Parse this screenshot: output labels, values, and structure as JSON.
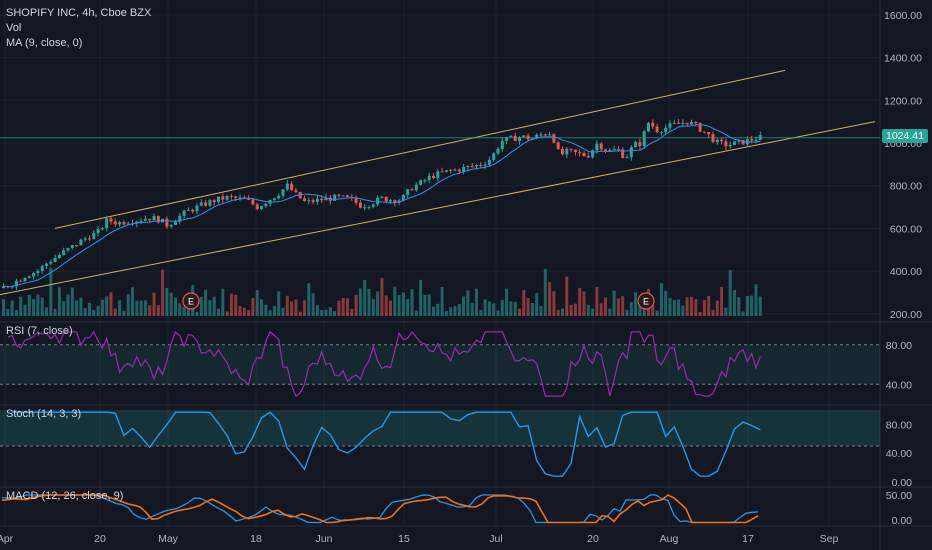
{
  "header": {
    "symbol_line": "SHOPIFY INC, 4h, Cboe BZX",
    "vol_label": "Vol",
    "ma_label": "MA (9, close, 0)"
  },
  "price_badge": "1024.41",
  "colors": {
    "background": "#131722",
    "up": "#26a69a",
    "down": "#ef5350",
    "ma_line": "#2196f3",
    "channel": "#d4b25f",
    "rsi": "#9c27b0",
    "stoch": "#2196f3",
    "macd": "#2196f3",
    "signal": "#ff6d00"
  },
  "panes": {
    "rsi_label": "RSI (7, close)",
    "stoch_label": "Stoch (14, 3, 3)",
    "macd_label": "MACD (12, 26, close, 9)"
  },
  "chart_data": [
    {
      "type": "candlestick",
      "title": "SHOPIFY INC, 4h, Cboe BZX",
      "x_ticks": [
        "Apr",
        "20",
        "May",
        "18",
        "Jun",
        "15",
        "Jul",
        "20",
        "Aug",
        "17",
        "Sep"
      ],
      "y_ticks": [
        "1600.00",
        "1400.00",
        "1200.00",
        "1000.00",
        "800.00",
        "600.00",
        "400.00",
        "200.00"
      ],
      "ylim": [
        200,
        1600
      ],
      "current_price": 1024.41,
      "price_path": [
        {
          "x": 0,
          "v": 320
        },
        {
          "x": 12,
          "v": 345
        },
        {
          "x": 24,
          "v": 380
        },
        {
          "x": 36,
          "v": 400
        },
        {
          "x": 46,
          "v": 440
        },
        {
          "x": 56,
          "v": 470
        },
        {
          "x": 66,
          "v": 500
        },
        {
          "x": 76,
          "v": 530
        },
        {
          "x": 86,
          "v": 560
        },
        {
          "x": 96,
          "v": 580
        },
        {
          "x": 106,
          "v": 640
        },
        {
          "x": 116,
          "v": 625
        },
        {
          "x": 126,
          "v": 635
        },
        {
          "x": 136,
          "v": 640
        },
        {
          "x": 146,
          "v": 650
        },
        {
          "x": 156,
          "v": 645
        },
        {
          "x": 166,
          "v": 615
        },
        {
          "x": 176,
          "v": 650
        },
        {
          "x": 186,
          "v": 680
        },
        {
          "x": 196,
          "v": 700
        },
        {
          "x": 206,
          "v": 720
        },
        {
          "x": 216,
          "v": 735
        },
        {
          "x": 226,
          "v": 745
        },
        {
          "x": 236,
          "v": 740
        },
        {
          "x": 246,
          "v": 730
        },
        {
          "x": 256,
          "v": 700
        },
        {
          "x": 266,
          "v": 730
        },
        {
          "x": 276,
          "v": 760
        },
        {
          "x": 286,
          "v": 800
        },
        {
          "x": 294,
          "v": 760
        },
        {
          "x": 304,
          "v": 720
        },
        {
          "x": 314,
          "v": 730
        },
        {
          "x": 326,
          "v": 740
        },
        {
          "x": 338,
          "v": 745
        },
        {
          "x": 350,
          "v": 735
        },
        {
          "x": 360,
          "v": 705
        },
        {
          "x": 370,
          "v": 720
        },
        {
          "x": 380,
          "v": 740
        },
        {
          "x": 390,
          "v": 735
        },
        {
          "x": 400,
          "v": 735
        },
        {
          "x": 410,
          "v": 790
        },
        {
          "x": 420,
          "v": 815
        },
        {
          "x": 430,
          "v": 845
        },
        {
          "x": 440,
          "v": 860
        },
        {
          "x": 450,
          "v": 870
        },
        {
          "x": 460,
          "v": 880
        },
        {
          "x": 470,
          "v": 890
        },
        {
          "x": 480,
          "v": 900
        },
        {
          "x": 490,
          "v": 930
        },
        {
          "x": 500,
          "v": 1010
        },
        {
          "x": 510,
          "v": 1020
        },
        {
          "x": 520,
          "v": 1030
        },
        {
          "x": 530,
          "v": 1020
        },
        {
          "x": 540,
          "v": 1040
        },
        {
          "x": 550,
          "v": 1050
        },
        {
          "x": 558,
          "v": 940
        },
        {
          "x": 566,
          "v": 960
        },
        {
          "x": 576,
          "v": 950
        },
        {
          "x": 586,
          "v": 940
        },
        {
          "x": 596,
          "v": 1000
        },
        {
          "x": 606,
          "v": 960
        },
        {
          "x": 616,
          "v": 970
        },
        {
          "x": 624,
          "v": 930
        },
        {
          "x": 632,
          "v": 990
        },
        {
          "x": 640,
          "v": 1000
        },
        {
          "x": 646,
          "v": 1100
        },
        {
          "x": 656,
          "v": 1060
        },
        {
          "x": 666,
          "v": 1075
        },
        {
          "x": 676,
          "v": 1090
        },
        {
          "x": 686,
          "v": 1100
        },
        {
          "x": 696,
          "v": 1075
        },
        {
          "x": 706,
          "v": 1040
        },
        {
          "x": 716,
          "v": 1000
        },
        {
          "x": 726,
          "v": 990
        },
        {
          "x": 736,
          "v": 1000
        },
        {
          "x": 746,
          "v": 1010
        },
        {
          "x": 756,
          "v": 1024
        }
      ],
      "earnings_markers": [
        "E",
        "E"
      ],
      "channel": {
        "upper_start": 600,
        "upper_end": 1340,
        "lower_start": 290,
        "lower_end": 1100
      }
    },
    {
      "type": "line",
      "title": "RSI (7, close)",
      "y_ticks": [
        "80.00",
        "40.00"
      ],
      "band": [
        40,
        80
      ],
      "ylim": [
        20,
        100
      ]
    },
    {
      "type": "line",
      "title": "Stoch (14, 3, 3)",
      "y_ticks": [
        "80.00",
        "40.00",
        "0.00"
      ],
      "band": [
        50,
        100
      ],
      "ylim": [
        0,
        100
      ]
    },
    {
      "type": "line",
      "title": "MACD (12, 26, close, 9)",
      "y_ticks": [
        "50.00",
        "0.00"
      ],
      "ylim": [
        -10,
        60
      ]
    }
  ]
}
